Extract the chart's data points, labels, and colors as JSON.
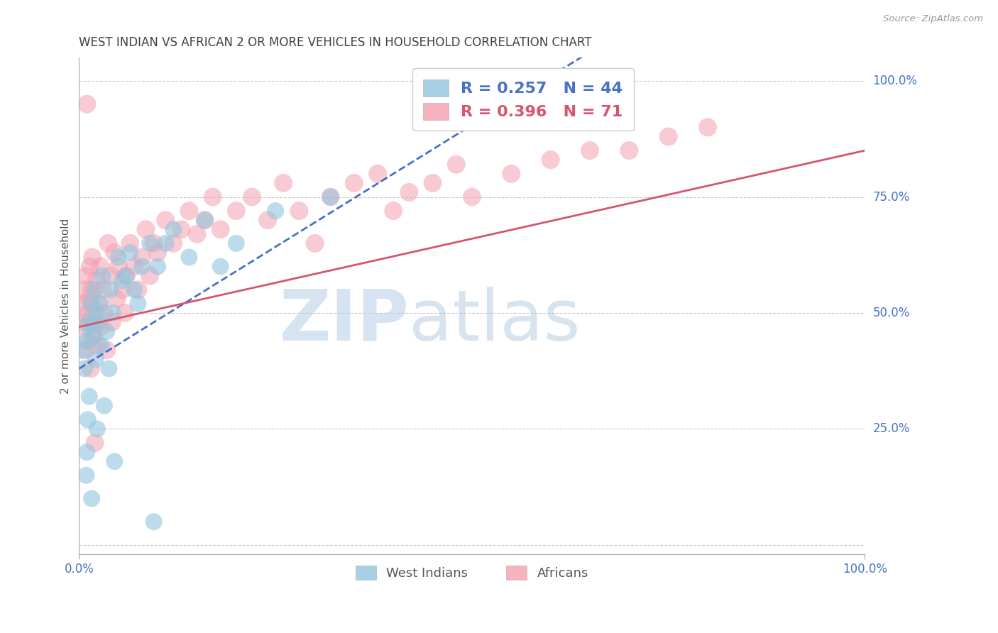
{
  "title": "WEST INDIAN VS AFRICAN 2 OR MORE VEHICLES IN HOUSEHOLD CORRELATION CHART",
  "source_text": "Source: ZipAtlas.com",
  "ylabel": "2 or more Vehicles in Household",
  "xlim": [
    0.0,
    1.0
  ],
  "ylim": [
    -0.02,
    1.05
  ],
  "west_indian_R": 0.257,
  "west_indian_N": 44,
  "african_R": 0.396,
  "african_N": 71,
  "blue_scatter_color": "#92c5de",
  "pink_scatter_color": "#f4a0b0",
  "blue_line_color": "#4472c4",
  "pink_line_color": "#d6546e",
  "blue_text_color": "#4472c4",
  "title_color": "#404040",
  "grid_color": "#c8c8c8",
  "wi_x": [
    0.005,
    0.007,
    0.008,
    0.009,
    0.01,
    0.011,
    0.012,
    0.013,
    0.014,
    0.015,
    0.016,
    0.018,
    0.02,
    0.021,
    0.022,
    0.023,
    0.025,
    0.027,
    0.028,
    0.03,
    0.032,
    0.035,
    0.038,
    0.04,
    0.043,
    0.045,
    0.05,
    0.055,
    0.06,
    0.065,
    0.07,
    0.075,
    0.08,
    0.09,
    0.095,
    0.1,
    0.11,
    0.12,
    0.14,
    0.16,
    0.18,
    0.2,
    0.25,
    0.32
  ],
  "wi_y": [
    0.42,
    0.38,
    0.44,
    0.15,
    0.2,
    0.27,
    0.48,
    0.32,
    0.47,
    0.52,
    0.1,
    0.45,
    0.55,
    0.4,
    0.5,
    0.25,
    0.48,
    0.52,
    0.43,
    0.58,
    0.3,
    0.46,
    0.38,
    0.55,
    0.5,
    0.18,
    0.62,
    0.57,
    0.58,
    0.63,
    0.55,
    0.52,
    0.6,
    0.65,
    0.05,
    0.6,
    0.65,
    0.68,
    0.62,
    0.7,
    0.6,
    0.65,
    0.72,
    0.75
  ],
  "af_x": [
    0.005,
    0.006,
    0.007,
    0.008,
    0.009,
    0.01,
    0.011,
    0.012,
    0.013,
    0.014,
    0.015,
    0.016,
    0.017,
    0.018,
    0.019,
    0.02,
    0.022,
    0.023,
    0.025,
    0.027,
    0.028,
    0.03,
    0.032,
    0.035,
    0.037,
    0.04,
    0.042,
    0.045,
    0.048,
    0.05,
    0.055,
    0.058,
    0.06,
    0.065,
    0.07,
    0.075,
    0.08,
    0.085,
    0.09,
    0.095,
    0.1,
    0.11,
    0.12,
    0.13,
    0.14,
    0.15,
    0.16,
    0.17,
    0.18,
    0.2,
    0.22,
    0.24,
    0.26,
    0.28,
    0.3,
    0.32,
    0.35,
    0.38,
    0.4,
    0.42,
    0.45,
    0.48,
    0.5,
    0.55,
    0.6,
    0.65,
    0.7,
    0.75,
    0.8,
    0.01,
    0.02
  ],
  "af_y": [
    0.52,
    0.48,
    0.55,
    0.42,
    0.58,
    0.47,
    0.5,
    0.44,
    0.53,
    0.6,
    0.38,
    0.55,
    0.62,
    0.45,
    0.5,
    0.48,
    0.57,
    0.43,
    0.52,
    0.6,
    0.47,
    0.55,
    0.5,
    0.42,
    0.65,
    0.58,
    0.48,
    0.63,
    0.53,
    0.6,
    0.55,
    0.5,
    0.58,
    0.65,
    0.6,
    0.55,
    0.62,
    0.68,
    0.58,
    0.65,
    0.63,
    0.7,
    0.65,
    0.68,
    0.72,
    0.67,
    0.7,
    0.75,
    0.68,
    0.72,
    0.75,
    0.7,
    0.78,
    0.72,
    0.65,
    0.75,
    0.78,
    0.8,
    0.72,
    0.76,
    0.78,
    0.82,
    0.75,
    0.8,
    0.83,
    0.85,
    0.85,
    0.88,
    0.9,
    0.95,
    0.22
  ]
}
